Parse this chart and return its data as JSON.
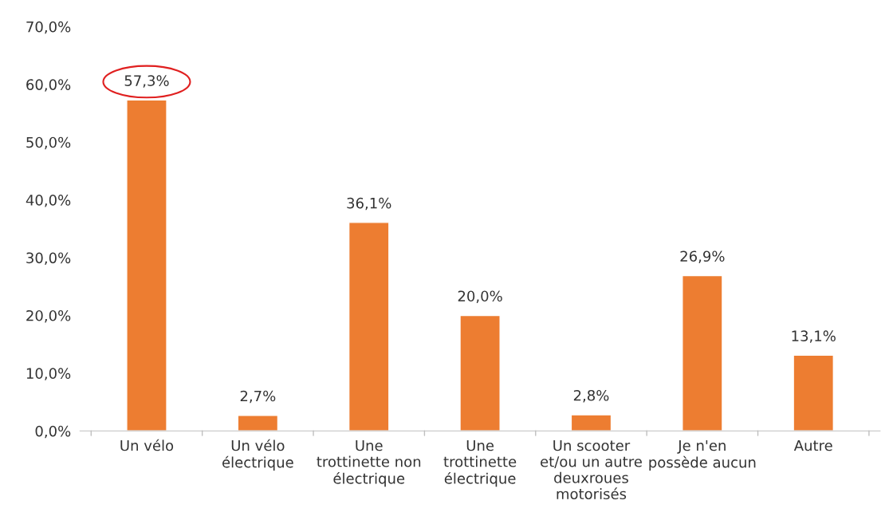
{
  "chart_data": {
    "type": "bar",
    "categories": [
      "Un vélo",
      "Un vélo\nélectrique",
      "Une\ntrottinette non\nélectrique",
      "Une\ntrottinette\nélectrique",
      "Un scooter\net/ou un autre\ndeuxroues\nmotorisés",
      "Je n'en\npossède aucun",
      "Autre"
    ],
    "values": [
      57.3,
      2.7,
      36.1,
      20.0,
      2.8,
      26.9,
      13.1
    ],
    "value_labels": [
      "57,3%",
      "2,7%",
      "36,1%",
      "20,0%",
      "2,8%",
      "26,9%",
      "13,1%"
    ],
    "color": "#ed7d31",
    "ylim": [
      0,
      70
    ],
    "yticks": [
      {
        "value": 0,
        "label": "0,0%"
      },
      {
        "value": 10,
        "label": "10,0%"
      },
      {
        "value": 20,
        "label": "20,0%"
      },
      {
        "value": 30,
        "label": "30,0%"
      },
      {
        "value": 40,
        "label": "40,0%"
      },
      {
        "value": 50,
        "label": "50,0%"
      },
      {
        "value": 60,
        "label": "60,0%"
      },
      {
        "value": 70,
        "label": "70,0%"
      }
    ],
    "grid": false,
    "legend": false
  }
}
